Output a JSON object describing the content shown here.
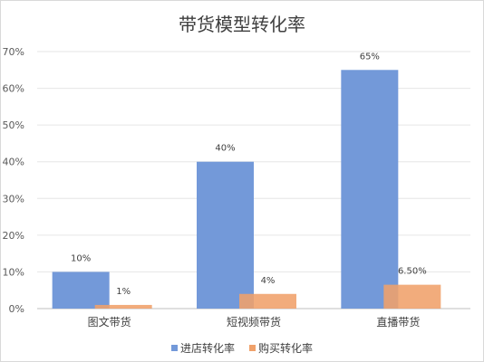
{
  "chart_data": {
    "type": "bar",
    "title": "带货模型转化率",
    "categories": [
      "图文带货",
      "短视频带货",
      "直播带货"
    ],
    "series": [
      {
        "name": "进店转化率",
        "values": [
          10,
          40,
          65
        ],
        "labels": [
          "10%",
          "40%",
          "65%"
        ],
        "color": "#7399d9"
      },
      {
        "name": "购买转化率",
        "values": [
          1,
          4,
          6.5
        ],
        "labels": [
          "1%",
          "4%",
          "6.50%"
        ],
        "color": "#f0a16a"
      }
    ],
    "ylim": [
      0,
      70
    ],
    "yticks": [
      "0%",
      "10%",
      "20%",
      "30%",
      "40%",
      "50%",
      "60%",
      "70%"
    ],
    "grid": true,
    "legend_position": "bottom",
    "xlabel": "",
    "ylabel": ""
  }
}
